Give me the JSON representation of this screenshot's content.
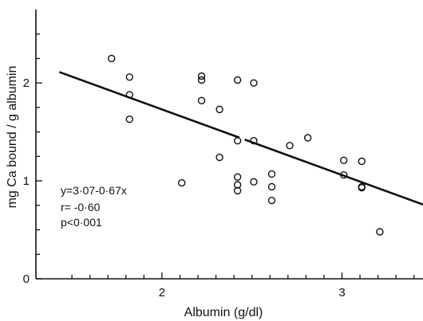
{
  "chart_data": {
    "type": "scatter",
    "xlabel": "Albumin (g/dl)",
    "ylabel": "mg Ca bound / g albumin",
    "xlim": [
      1.3,
      3.45
    ],
    "ylim": [
      0,
      2.75
    ],
    "x_ticks": [
      2,
      3
    ],
    "y_ticks": [
      0,
      1,
      2
    ],
    "x_tick_labels": [
      "2",
      "3"
    ],
    "y_tick_labels": [
      "0",
      "1",
      "2"
    ],
    "grid": false,
    "points": [
      {
        "x": 1.72,
        "y": 2.25
      },
      {
        "x": 1.82,
        "y": 2.06
      },
      {
        "x": 1.82,
        "y": 1.88
      },
      {
        "x": 1.82,
        "y": 1.63
      },
      {
        "x": 2.11,
        "y": 0.98
      },
      {
        "x": 2.22,
        "y": 2.07
      },
      {
        "x": 2.22,
        "y": 2.03
      },
      {
        "x": 2.22,
        "y": 1.82
      },
      {
        "x": 2.32,
        "y": 1.73
      },
      {
        "x": 2.32,
        "y": 1.24
      },
      {
        "x": 2.42,
        "y": 2.03
      },
      {
        "x": 2.42,
        "y": 1.41
      },
      {
        "x": 2.42,
        "y": 1.04
      },
      {
        "x": 2.42,
        "y": 0.96
      },
      {
        "x": 2.42,
        "y": 0.9
      },
      {
        "x": 2.51,
        "y": 2.0
      },
      {
        "x": 2.51,
        "y": 1.41
      },
      {
        "x": 2.51,
        "y": 0.99
      },
      {
        "x": 2.61,
        "y": 1.07
      },
      {
        "x": 2.61,
        "y": 0.94
      },
      {
        "x": 2.61,
        "y": 0.8
      },
      {
        "x": 2.71,
        "y": 1.36
      },
      {
        "x": 2.81,
        "y": 1.44
      },
      {
        "x": 3.01,
        "y": 1.21
      },
      {
        "x": 3.01,
        "y": 1.06
      },
      {
        "x": 3.11,
        "y": 1.2
      },
      {
        "x": 3.11,
        "y": 0.94
      },
      {
        "x": 3.11,
        "y": 0.93
      },
      {
        "x": 3.21,
        "y": 0.48
      }
    ],
    "regression": {
      "intercept": 3.07,
      "slope": -0.67,
      "x_range": [
        1.43,
        3.45
      ],
      "gap_x": [
        2.43,
        2.46
      ]
    },
    "annotations": {
      "equation": "y=3·07-0·67x",
      "r": "r= -0·60",
      "p": "p<0·001"
    }
  }
}
